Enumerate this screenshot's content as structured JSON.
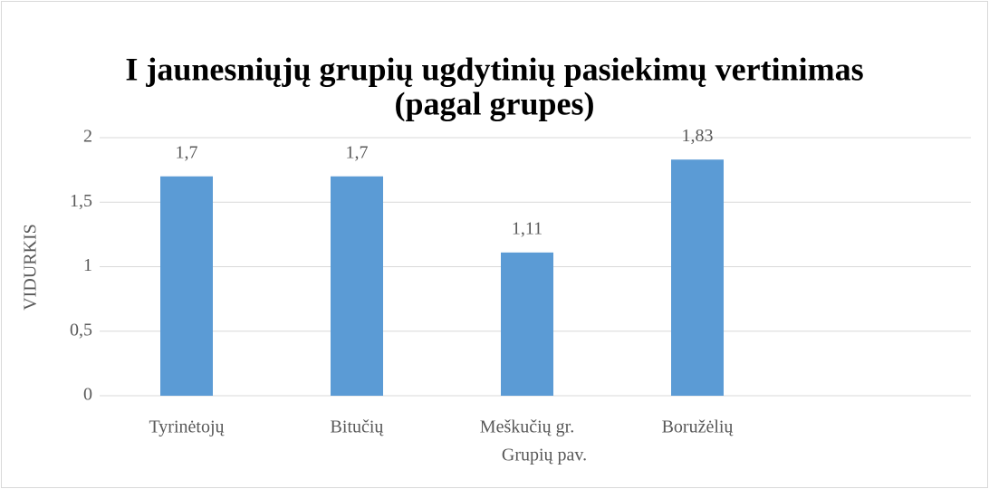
{
  "chart_data": {
    "type": "bar",
    "title": [
      "I jaunesniųjų grupių ugdytinių pasiekimų vertinimas",
      "(pagal grupes)"
    ],
    "y_label": "VIDURKIS",
    "x_label": "Grupių pav.",
    "categories": [
      "Tyrinėtojų",
      "Bitučių",
      "Meškučių gr.",
      "Boružėlių",
      null
    ],
    "values": [
      1.7,
      1.7,
      1.11,
      1.83,
      null
    ],
    "value_labels": [
      "1,7",
      "1,7",
      "1,11",
      "1,83",
      null
    ],
    "color": "#5b9bd5",
    "ylim": [
      0,
      2
    ],
    "yticks": [
      0,
      {
        "value": 0.5,
        "label": "0,5"
      },
      1,
      {
        "value": 1.5,
        "label": "1,5"
      },
      2
    ],
    "grid": true
  }
}
